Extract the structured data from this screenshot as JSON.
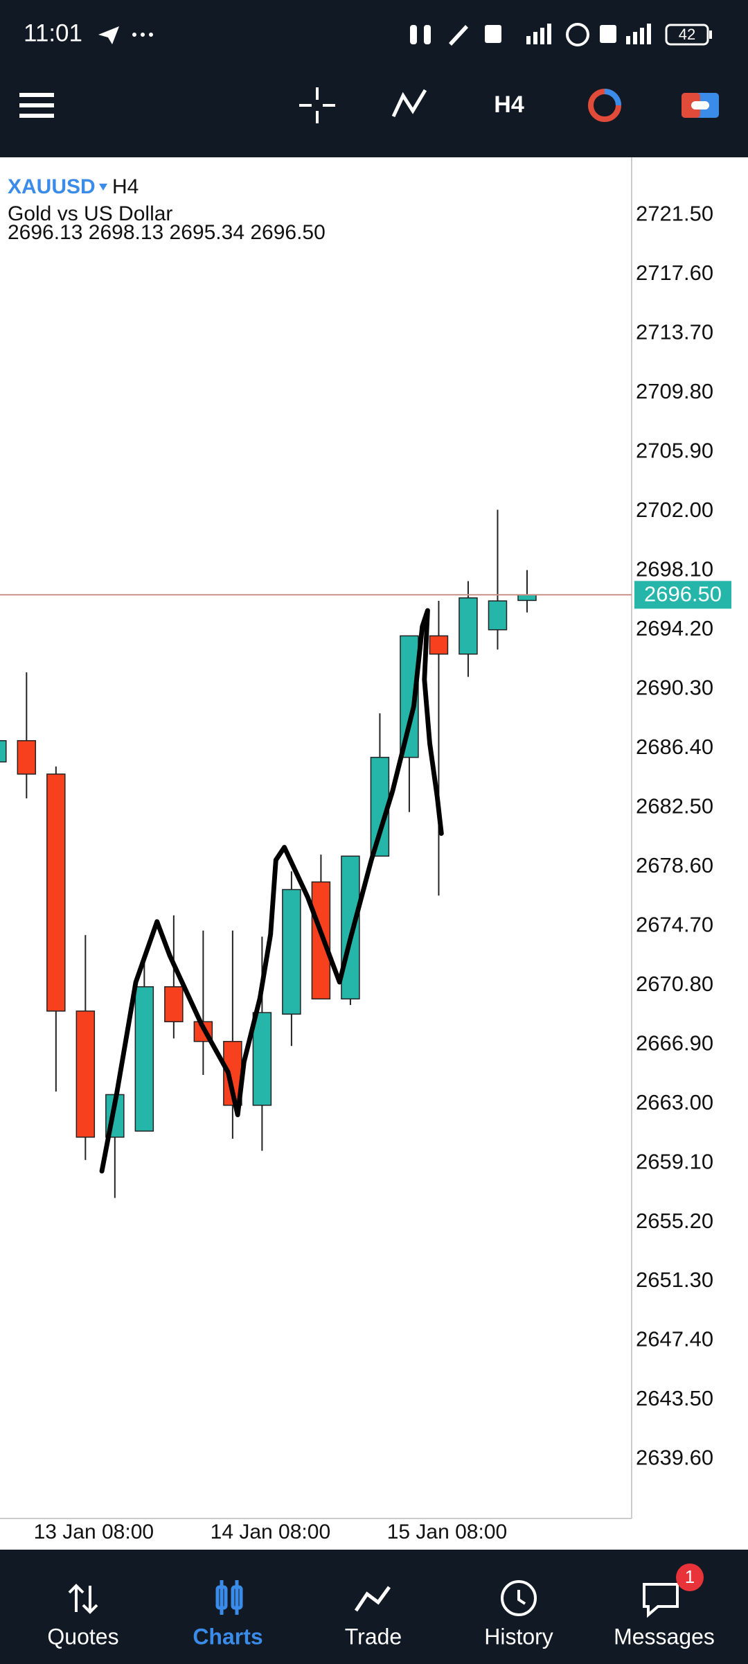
{
  "status_bar": {
    "time": "11:01",
    "battery": "42"
  },
  "toolbar": {
    "timeframe": "H4"
  },
  "chart_data": {
    "type": "candlestick",
    "symbol": "XAUUSD",
    "timeframe": "H4",
    "description": "Gold vs US Dollar",
    "info_line": "2696.13 2698.13 2695.34 2696.50",
    "categories": [
      null,
      null,
      null,
      "13 Jan 08:00",
      null,
      null,
      null,
      null,
      null,
      "14 Jan 08:00",
      null,
      null,
      null,
      null,
      null,
      "15 Jan 08:00",
      null,
      null,
      null
    ],
    "open": [
      2685.5,
      2686.9,
      2684.7,
      2669.1,
      2660.8,
      2661.2,
      2670.7,
      2668.4,
      2667.1,
      2662.9,
      2668.9,
      2677.6,
      2669.9,
      2679.3,
      2685.8,
      2693.8,
      2692.6,
      2694.2,
      2696.13
    ],
    "high": [
      2686.9,
      2691.4,
      2685.2,
      2674.1,
      2663.6,
      2672.4,
      2675.4,
      2674.4,
      2674.4,
      2674.0,
      2678.3,
      2679.4,
      2679.3,
      2688.7,
      2693.8,
      2696.1,
      2697.4,
      2702.1,
      2698.13
    ],
    "low": [
      2685.5,
      2683.1,
      2663.8,
      2659.3,
      2656.8,
      2661.2,
      2667.3,
      2664.9,
      2660.7,
      2659.9,
      2666.8,
      2669.9,
      2669.5,
      2679.3,
      2682.2,
      2676.7,
      2691.1,
      2692.9,
      2695.34
    ],
    "close": [
      2686.9,
      2684.7,
      2669.1,
      2660.8,
      2663.6,
      2670.7,
      2668.4,
      2667.1,
      2662.9,
      2669.0,
      2677.1,
      2669.9,
      2679.3,
      2685.8,
      2693.8,
      2692.6,
      2696.3,
      2696.1,
      2696.5
    ],
    "up_color": "#26b5a9",
    "down_color": "#f7411e",
    "ylim": [
      2635.7,
      2725.3
    ],
    "yticks": [
      {
        "value": 2639.6,
        "label": "2639.60"
      },
      {
        "value": 2643.5,
        "label": "2643.50"
      },
      {
        "value": 2647.4,
        "label": "2647.40"
      },
      {
        "value": 2651.3,
        "label": "2651.30"
      },
      {
        "value": 2655.2,
        "label": "2655.20"
      },
      {
        "value": 2659.1,
        "label": "2659.10"
      },
      {
        "value": 2663,
        "label": "2663.00"
      },
      {
        "value": 2666.9,
        "label": "2666.90"
      },
      {
        "value": 2670.8,
        "label": "2670.80"
      },
      {
        "value": 2674.7,
        "label": "2674.70"
      },
      {
        "value": 2678.6,
        "label": "2678.60"
      },
      {
        "value": 2682.5,
        "label": "2682.50"
      },
      {
        "value": 2686.4,
        "label": "2686.40"
      },
      {
        "value": 2690.3,
        "label": "2690.30"
      },
      {
        "value": 2694.2,
        "label": "2694.20"
      },
      {
        "value": 2698.1,
        "label": "2698.10"
      },
      {
        "value": 2702,
        "label": "2702.00"
      },
      {
        "value": 2705.9,
        "label": "2705.90"
      },
      {
        "value": 2709.8,
        "label": "2709.80"
      },
      {
        "value": 2713.7,
        "label": "2713.70"
      },
      {
        "value": 2717.6,
        "label": "2717.60"
      },
      {
        "value": 2721.5,
        "label": "2721.50"
      }
    ],
    "last_price": {
      "value": 2696.5,
      "label": "2696.50"
    },
    "grid": false
  },
  "nav": {
    "items": [
      "Quotes",
      "Charts",
      "Trade",
      "History",
      "Messages"
    ],
    "active": 1,
    "badge": "1"
  }
}
